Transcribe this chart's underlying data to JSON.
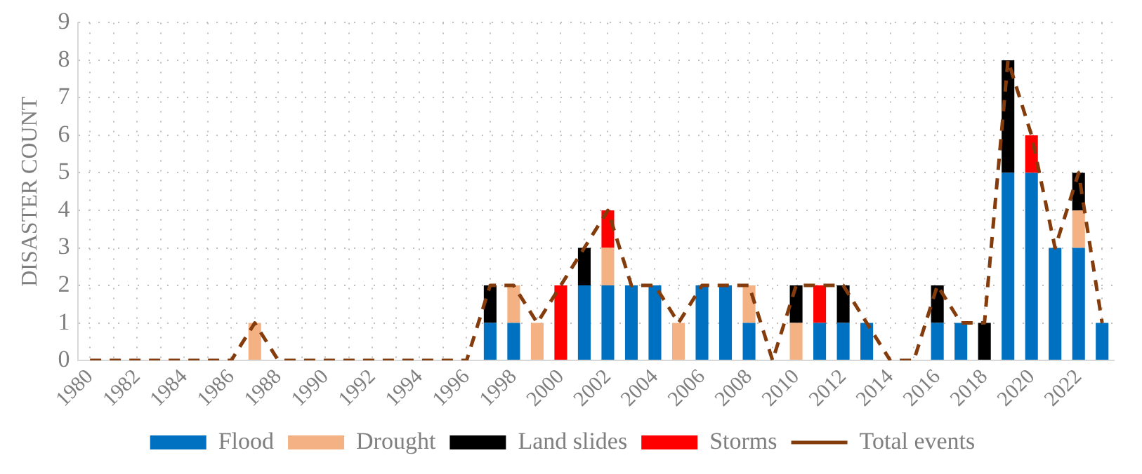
{
  "chart_data": {
    "type": "bar",
    "stacked": true,
    "ylabel": "DISASTER COUNT",
    "categories": [
      "1980",
      null,
      "1982",
      null,
      "1984",
      null,
      "1986",
      null,
      "1988",
      null,
      "1990",
      null,
      "1992",
      null,
      "1994",
      null,
      "1996",
      null,
      "1998",
      null,
      "2000",
      null,
      "2002",
      null,
      "2004",
      null,
      "2006",
      null,
      "2008",
      null,
      "2010",
      null,
      "2012",
      null,
      "2014",
      null,
      "2016",
      null,
      "2018",
      null,
      "2020",
      null,
      "2022",
      null
    ],
    "series": [
      {
        "name": "Flood",
        "color": "#0070c0",
        "values": [
          0,
          0,
          0,
          0,
          0,
          0,
          0,
          0,
          0,
          0,
          0,
          0,
          0,
          0,
          0,
          0,
          0,
          1,
          1,
          0,
          0,
          2,
          2,
          2,
          2,
          0,
          2,
          2,
          1,
          0,
          0,
          1,
          1,
          1,
          0,
          0,
          1,
          1,
          0,
          5,
          5,
          3,
          3,
          1
        ]
      },
      {
        "name": "Drought",
        "color": "#f4b183",
        "values": [
          0,
          0,
          0,
          0,
          0,
          0,
          0,
          1,
          0,
          0,
          0,
          0,
          0,
          0,
          0,
          0,
          0,
          0,
          1,
          1,
          0,
          0,
          1,
          0,
          0,
          1,
          0,
          0,
          1,
          0,
          1,
          0,
          0,
          0,
          0,
          0,
          0,
          0,
          0,
          0,
          0,
          0,
          1,
          0
        ]
      },
      {
        "name": "Land slides",
        "color": "#000000",
        "values": [
          0,
          0,
          0,
          0,
          0,
          0,
          0,
          0,
          0,
          0,
          0,
          0,
          0,
          0,
          0,
          0,
          0,
          1,
          0,
          0,
          0,
          1,
          0,
          0,
          0,
          0,
          0,
          0,
          0,
          0,
          1,
          0,
          1,
          0,
          0,
          0,
          1,
          0,
          1,
          3,
          0,
          0,
          1,
          0
        ]
      },
      {
        "name": "Storms",
        "color": "#ff0000",
        "values": [
          0,
          0,
          0,
          0,
          0,
          0,
          0,
          0,
          0,
          0,
          0,
          0,
          0,
          0,
          0,
          0,
          0,
          0,
          0,
          0,
          2,
          0,
          1,
          0,
          0,
          0,
          0,
          0,
          0,
          0,
          0,
          1,
          0,
          0,
          0,
          0,
          0,
          0,
          0,
          0,
          1,
          0,
          0,
          0
        ]
      },
      {
        "name": "Total events",
        "type": "line",
        "color": "#843c0c",
        "line_style": "dashed",
        "marker": "none",
        "values": [
          0,
          0,
          0,
          0,
          0,
          0,
          0,
          1,
          0,
          0,
          0,
          0,
          0,
          0,
          0,
          0,
          0,
          2,
          2,
          1,
          2,
          3,
          4,
          2,
          2,
          1,
          2,
          2,
          2,
          0,
          2,
          2,
          2,
          1,
          0,
          0,
          2,
          1,
          1,
          8,
          6,
          3,
          5,
          1
        ]
      }
    ],
    "ylim": [
      0,
      9
    ],
    "yticks": [
      0,
      1,
      2,
      3,
      4,
      5,
      6,
      7,
      8,
      9
    ],
    "grid": true,
    "legend": "bottom"
  }
}
